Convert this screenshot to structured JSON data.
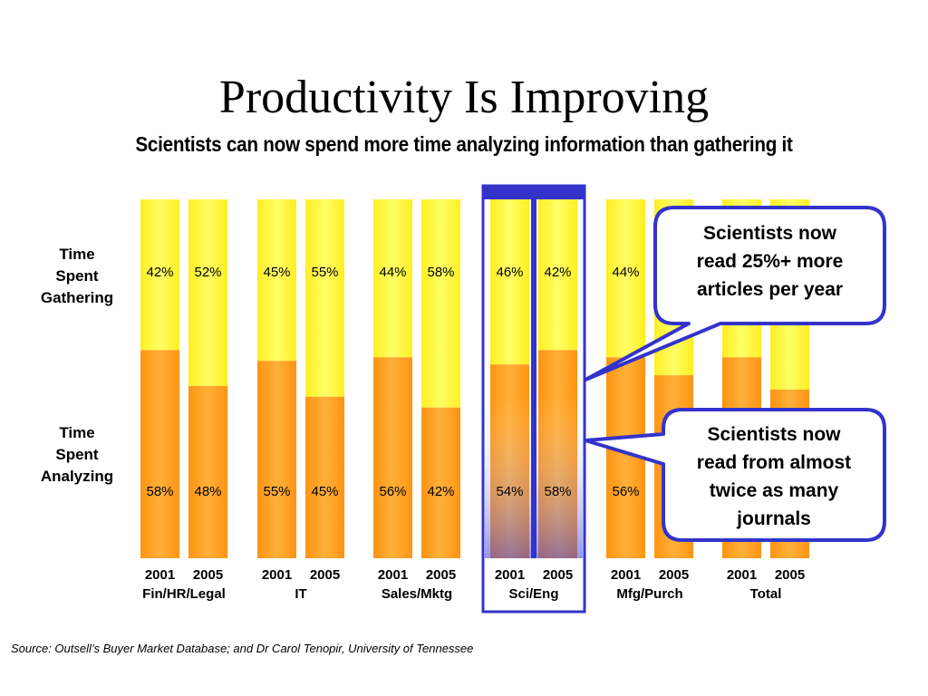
{
  "slide": {
    "title": "Productivity Is Improving",
    "subtitle": "Scientists can now spend more time analyzing information than gathering it",
    "row_labels": {
      "gathering": [
        "Time",
        "Spent",
        "Gathering"
      ],
      "analyzing": [
        "Time",
        "Spent",
        "Analyzing"
      ]
    },
    "callouts": {
      "articles": [
        "Scientists now",
        "read 25%+ more",
        "articles per year"
      ],
      "journals": [
        "Scientists now",
        "read from almost",
        "twice as many",
        "journals"
      ]
    },
    "source": "Source: Outsell’s Buyer Market Database; and Dr Carol Tenopir, University of Tennessee"
  },
  "chart_data": {
    "type": "bar",
    "stacked": true,
    "ylim": [
      0,
      100
    ],
    "highlighted_group": "Sci/Eng",
    "groups": [
      {
        "name": "Fin/HR/Legal",
        "years": [
          "2001",
          "2005"
        ],
        "analyzing": [
          58,
          48
        ],
        "gathering": [
          42,
          52
        ]
      },
      {
        "name": "IT",
        "years": [
          "2001",
          "2005"
        ],
        "analyzing": [
          55,
          45
        ],
        "gathering": [
          45,
          55
        ]
      },
      {
        "name": "Sales/Mktg",
        "years": [
          "2001",
          "2005"
        ],
        "analyzing": [
          56,
          42
        ],
        "gathering": [
          44,
          58
        ]
      },
      {
        "name": "Sci/Eng",
        "years": [
          "2001",
          "2005"
        ],
        "analyzing": [
          54,
          58
        ],
        "gathering": [
          46,
          42
        ]
      },
      {
        "name": "Mfg/Purch",
        "years": [
          "2001",
          "2005"
        ],
        "analyzing": [
          56,
          51
        ],
        "gathering": [
          44,
          49
        ]
      },
      {
        "name": "Total",
        "years": [
          "2001",
          "2005"
        ],
        "analyzing": [
          56,
          47
        ],
        "gathering": [
          44,
          53
        ]
      }
    ],
    "hidden_labels": [
      [
        4,
        1
      ],
      [
        5,
        0
      ],
      [
        5,
        1
      ]
    ],
    "colors": {
      "gathering": "#ffff33",
      "analyzing": "#ff9c1a",
      "highlight_frame": "#3333cc"
    }
  }
}
